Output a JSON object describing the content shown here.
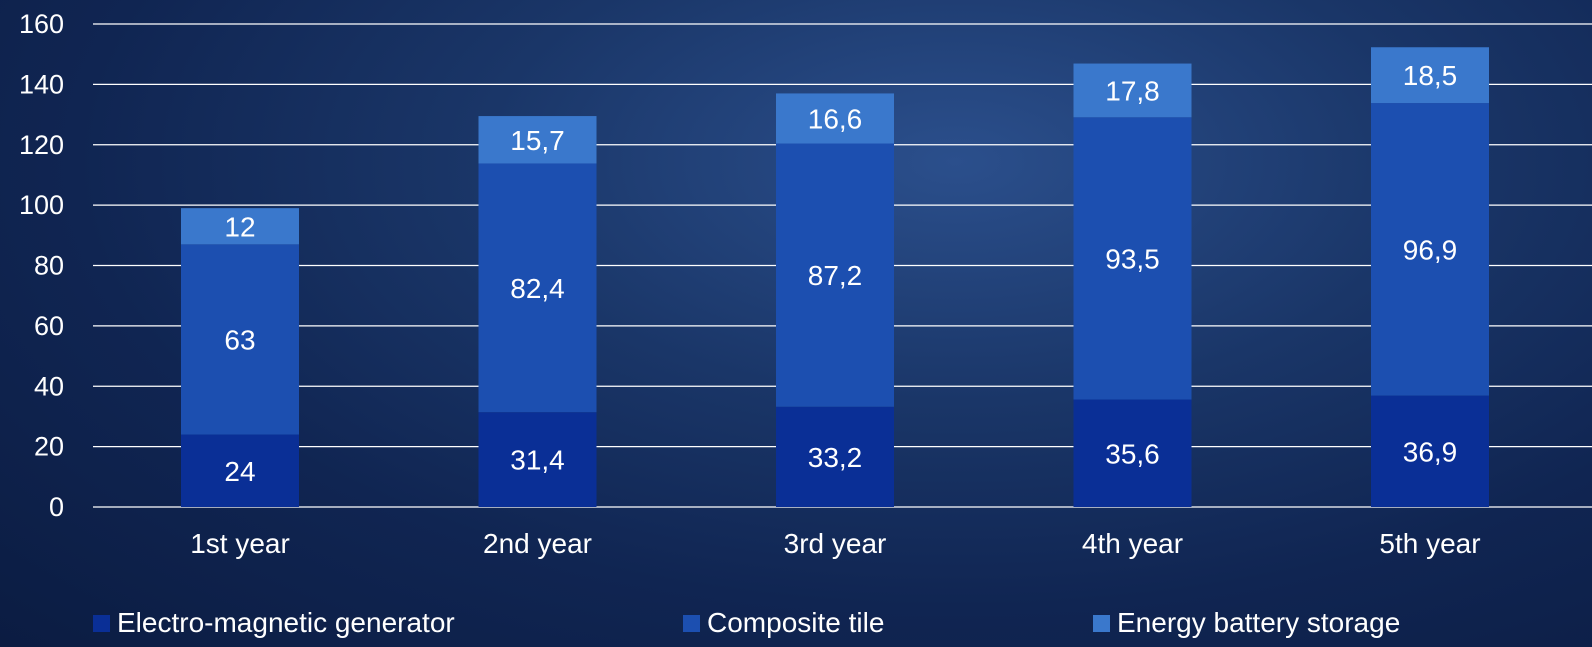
{
  "chart_data": {
    "type": "bar",
    "stacked": true,
    "categories": [
      "1st year",
      "2nd year",
      "3rd year",
      "4th year",
      "5th year"
    ],
    "series": [
      {
        "name": "Electro-magnetic generator",
        "values": [
          24,
          31.4,
          33.2,
          35.6,
          36.9
        ],
        "labels": [
          "24",
          "31,4",
          "33,2",
          "35,6",
          "36,9"
        ],
        "color": "#0a2f96"
      },
      {
        "name": "Composite tile",
        "values": [
          63,
          82.4,
          87.2,
          93.5,
          96.9
        ],
        "labels": [
          "63",
          "82,4",
          "87,2",
          "93,5",
          "96,9"
        ],
        "color": "#1c4fb0"
      },
      {
        "name": "Energy battery storage",
        "values": [
          12,
          15.7,
          16.6,
          17.8,
          18.5
        ],
        "labels": [
          "12",
          "15,7",
          "16,6",
          "17,8",
          "18,5"
        ],
        "color": "#3a78cc"
      }
    ],
    "yticks": [
      0,
      20,
      40,
      60,
      80,
      100,
      120,
      140,
      160
    ],
    "ylim": [
      0,
      160
    ],
    "grid": true,
    "legend_position": "bottom",
    "gridline_color": "#ffffff",
    "text_color": "#ffffff"
  }
}
